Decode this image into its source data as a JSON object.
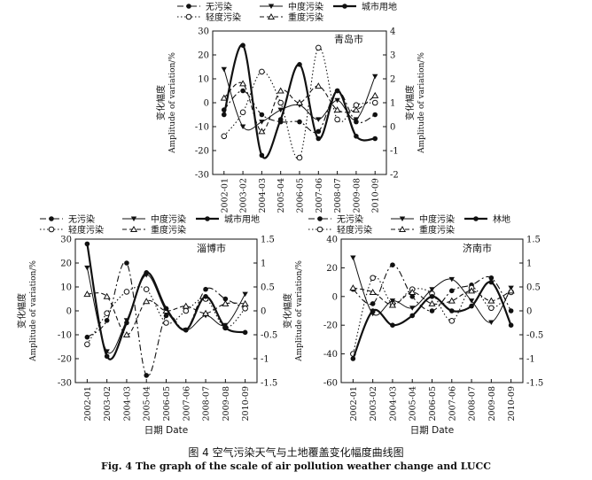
{
  "figure": {
    "caption_cn": "图 4   空气污染天气与土地覆盖变化幅度曲线图",
    "caption_en": "Fig. 4   The graph of the scale of air pollution weather change and LUCC"
  },
  "chart_data": [
    {
      "type": "line",
      "title": "青岛市",
      "categories": [
        "2002-01",
        "2003-02",
        "2004-03",
        "2005-04",
        "2006-05",
        "2007-06",
        "2008-07",
        "2009-08",
        "2010-09"
      ],
      "ylabel_left_cn": "变化幅度",
      "ylabel_left_en": "Amplitude of variation/%",
      "ylabel_right_cn": "变化幅度",
      "ylabel_right_en": "Amplitude of variation/%",
      "xlabel": "",
      "ylim_left": [
        -30,
        30
      ],
      "yticks_left": [
        -30,
        -20,
        -10,
        0,
        10,
        20,
        30
      ],
      "ylim_right": [
        -2,
        4
      ],
      "yticks_right": [
        -2,
        -1,
        0,
        1,
        2,
        3,
        4
      ],
      "legend": [
        "无污染",
        "中度污染",
        "城市用地",
        "轻度污染",
        "重度污染"
      ],
      "series": [
        {
          "name": "无污染",
          "axis": "left",
          "style": "dashdot",
          "marker": "filled-circle",
          "values": [
            -3,
            5,
            -5,
            -8,
            -8,
            -12,
            5,
            -8,
            -5
          ]
        },
        {
          "name": "轻度污染",
          "axis": "left",
          "style": "dotted",
          "marker": "open-circle",
          "values": [
            -14,
            -4,
            13,
            0,
            -23,
            23,
            -7,
            -1,
            0
          ]
        },
        {
          "name": "中度污染",
          "axis": "left",
          "style": "thin-solid",
          "marker": "filled-triangle-down",
          "values": [
            14,
            -10,
            -8,
            -3,
            -1,
            -7,
            1,
            -7,
            11
          ]
        },
        {
          "name": "重度污染",
          "axis": "left",
          "style": "dashed",
          "marker": "open-triangle",
          "values": [
            2,
            8,
            -12,
            5,
            0,
            7,
            -3,
            -3,
            3
          ]
        },
        {
          "name": "城市用地",
          "axis": "right",
          "style": "thick-solid",
          "marker": "filled-circle",
          "values": [
            0.5,
            3.4,
            -1.2,
            0.3,
            2.6,
            -0.5,
            1.5,
            -0.4,
            -0.5
          ]
        }
      ]
    },
    {
      "type": "line",
      "title": "淄博市",
      "categories": [
        "2002-01",
        "2003-02",
        "2004-03",
        "2005-04",
        "2006-05",
        "2007-06",
        "2008-07",
        "2009-08",
        "2010-09"
      ],
      "ylabel_left_cn": "变化幅度",
      "ylabel_left_en": "Amplitude of variation/%",
      "xlabel": "日期 Date",
      "ylim_left": [
        -30,
        30
      ],
      "yticks_left": [
        -30,
        -20,
        -10,
        0,
        10,
        20,
        30
      ],
      "ylim_right": [
        -1.5,
        1.5
      ],
      "yticks_right": [
        -1.5,
        -1.0,
        -0.5,
        0,
        0.5,
        1.0,
        1.5
      ],
      "legend": [
        "无污染",
        "中度污染",
        "城市用地",
        "轻度污染",
        "重度污染"
      ],
      "series": [
        {
          "name": "无污染",
          "axis": "left",
          "style": "dashdot",
          "marker": "filled-circle",
          "values": [
            -11,
            -4,
            20,
            -27,
            -2,
            -8,
            9,
            5,
            1
          ]
        },
        {
          "name": "轻度污染",
          "axis": "left",
          "style": "dotted",
          "marker": "open-circle",
          "values": [
            -14,
            -1,
            8,
            9,
            -5,
            0,
            5,
            -7,
            1
          ]
        },
        {
          "name": "中度污染",
          "axis": "left",
          "style": "thin-solid",
          "marker": "filled-triangle-down",
          "values": [
            18,
            -17,
            -4,
            15,
            0,
            -8,
            -2,
            -6,
            7
          ]
        },
        {
          "name": "重度污染",
          "axis": "left",
          "style": "dashed",
          "marker": "open-triangle",
          "values": [
            7,
            6,
            -10,
            4,
            0,
            2,
            -1,
            3,
            3
          ]
        },
        {
          "name": "城市用地",
          "axis": "right",
          "style": "thick-solid",
          "marker": "filled-circle",
          "values": [
            1.4,
            -0.95,
            -0.25,
            0.8,
            0.05,
            -0.4,
            0.3,
            -0.35,
            -0.45
          ]
        }
      ]
    },
    {
      "type": "line",
      "title": "济南市",
      "categories": [
        "2002-01",
        "2003-02",
        "2004-03",
        "2005-04",
        "2006-05",
        "2007-06",
        "2008-07",
        "2009-08",
        "2010-09"
      ],
      "ylabel_left_cn": "变化幅度",
      "ylabel_left_en": "Amplitude of variation/%",
      "xlabel": "日期 Date",
      "ylim_left": [
        -60,
        40
      ],
      "yticks_left": [
        -60,
        -40,
        -20,
        0,
        20,
        40
      ],
      "ylim_right": [
        -1.5,
        1.5
      ],
      "yticks_right": [
        -1.5,
        -1.0,
        -0.5,
        0,
        0.5,
        1.0,
        1.5
      ],
      "legend": [
        "无污染",
        "中度污染",
        "林地",
        "轻度污染",
        "重度污染"
      ],
      "series": [
        {
          "name": "无污染",
          "axis": "left",
          "style": "dashdot",
          "marker": "filled-circle",
          "values": [
            5,
            -5,
            22,
            0,
            -10,
            4,
            8,
            13,
            -10
          ]
        },
        {
          "name": "轻度污染",
          "axis": "left",
          "style": "dotted",
          "marker": "open-circle",
          "values": [
            -40,
            13,
            -5,
            5,
            2,
            -17,
            6,
            -8,
            3
          ]
        },
        {
          "name": "中度污染",
          "axis": "left",
          "style": "thin-solid",
          "marker": "filled-triangle-down",
          "values": [
            27,
            -12,
            -3,
            -8,
            5,
            12,
            -3,
            -18,
            6
          ]
        },
        {
          "name": "重度污染",
          "axis": "left",
          "style": "dashed",
          "marker": "open-triangle",
          "values": [
            6,
            3,
            -6,
            3,
            -5,
            -3,
            4,
            -3,
            4
          ]
        },
        {
          "name": "林地",
          "axis": "right",
          "style": "thick-solid",
          "marker": "filled-circle",
          "values": [
            -1.0,
            0.0,
            -0.3,
            -0.1,
            0.3,
            0.0,
            0.1,
            0.6,
            -0.3
          ]
        }
      ]
    }
  ]
}
